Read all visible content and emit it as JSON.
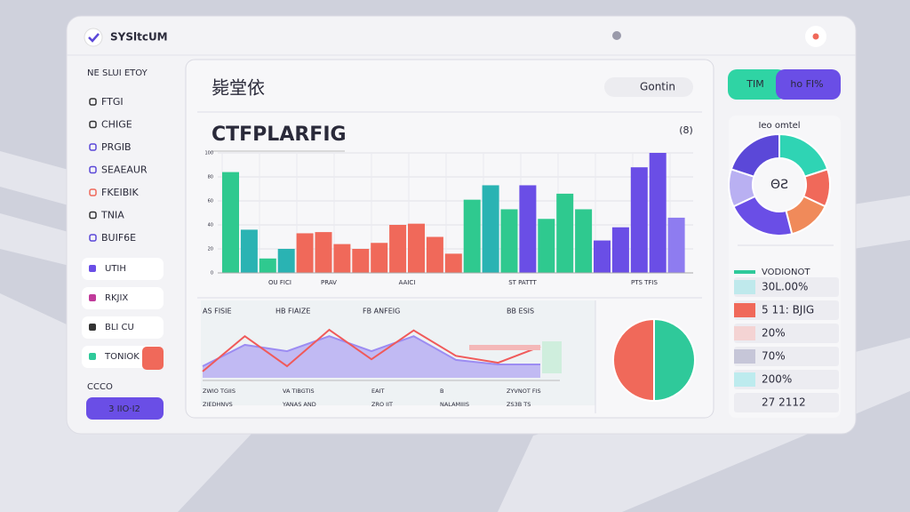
{
  "header": {
    "app_name": "SYSltcUM"
  },
  "sidebar": {
    "heading": "NE SLUI ETOY",
    "items": [
      "FTGI",
      "CHIGE",
      "PRGIB",
      "SEAEAUR",
      "FKEIBIK",
      "TNIA",
      "BUIF6E"
    ],
    "buttons": [
      "UTIH",
      "RKJIX",
      "BLI CU",
      "TONIOK"
    ],
    "footer_label": "CCCO",
    "cta": "3 IIO·I2"
  },
  "main": {
    "title": "毙堂依",
    "button": "Gontin",
    "subtitle": "CTFPLARFIG",
    "subtitle_icon": "(8)"
  },
  "right_panel": {
    "toggle": [
      "TIM",
      "ho FI%"
    ],
    "list": [
      "VODIONOT",
      "30L.00%",
      "5 11: BJIG",
      "20%",
      "70%",
      "200%",
      "27 2112"
    ],
    "list_colors": [
      "#2fc99a",
      "#bfe9ec",
      "#f0695a",
      "#f4d3d3",
      "#c6c6d8",
      "#bdebee",
      null
    ]
  },
  "chart_data": [
    {
      "type": "bar",
      "values": [
        84,
        36,
        12,
        20,
        33,
        34,
        24,
        20,
        25,
        40,
        41,
        30,
        16,
        61,
        73,
        53,
        73,
        45,
        66,
        53,
        27,
        38,
        88,
        100,
        46
      ],
      "colors": [
        "#2fc98f",
        "#2ab3b3",
        "#2fc98f",
        "#2ab3b3",
        "#f0695a",
        "#f0695a",
        "#f0695a",
        "#f0695a",
        "#f0695a",
        "#f0695a",
        "#f0695a",
        "#f0695a",
        "#f0695a",
        "#2fc98f",
        "#2ab3b3",
        "#2fc98f",
        "#6a4ee6",
        "#2fc98f",
        "#2fc98f",
        "#2fc98f",
        "#6a4ee6",
        "#6a4ee6",
        "#6a4ee6",
        "#6a4ee6",
        "#8e7cf0"
      ],
      "ylim": [
        0,
        100
      ],
      "yticks": [
        0,
        20,
        40,
        60,
        80,
        100
      ],
      "grid": true,
      "annotations": [
        "OU FICI",
        "PRAV",
        "AAICI",
        "ST PATTT",
        "PTS TFIS"
      ]
    },
    {
      "type": "line",
      "categories": [
        null,
        null,
        null,
        null,
        null,
        null,
        null,
        null,
        null
      ],
      "ylim": [
        0,
        100
      ],
      "series": [
        {
          "color": "#f05a5a",
          "values": [
            11,
            72,
            20,
            83,
            32,
            82,
            38,
            26,
            54
          ]
        },
        {
          "color": "#9c8cf2",
          "values": [
            20,
            57,
            46,
            72,
            46,
            72,
            31,
            23,
            23
          ]
        }
      ],
      "annotations": [
        "AS FISIE",
        "HB FIAIZE",
        "FB ANFEIG",
        "BB ESIS"
      ],
      "bottom_labels": [
        "ZWIO TGIIS",
        "VA TIBGTIS",
        "EAIT",
        "B",
        "ZYVNOT FIS"
      ],
      "bottom_labels_2": [
        "ZIEDHNVS",
        "YANAS AND",
        "ZRO IIT",
        "NALAMIIIS",
        "ZS3B TS"
      ]
    },
    {
      "type": "pie",
      "values": [
        50,
        50
      ],
      "colors": [
        "#2fc99a",
        "#f0695a"
      ]
    },
    {
      "type": "donut",
      "title": "Ieo omtel",
      "center_label": "ΘƧ",
      "values": [
        20,
        12,
        14,
        22,
        12,
        20
      ],
      "colors": [
        "#2fd4b4",
        "#f0695a",
        "#f08a5a",
        "#6a4ee6",
        "#b9b0f2",
        "#5b48d8"
      ]
    }
  ]
}
